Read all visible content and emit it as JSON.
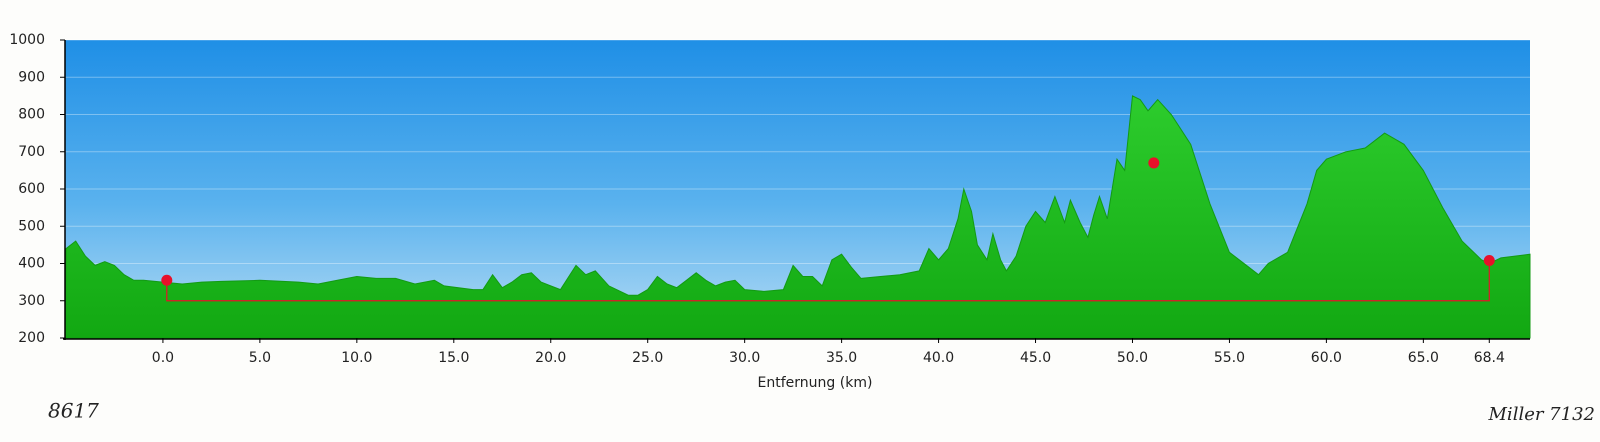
{
  "chart_data": {
    "type": "area",
    "x_label": "Entfernung  (km)",
    "xlim": [
      -5.05,
      70.5
    ],
    "ylim": [
      200,
      1000
    ],
    "xticks": [
      {
        "value": 0,
        "label": "0.0"
      },
      {
        "value": 5,
        "label": "5.0"
      },
      {
        "value": 10,
        "label": "10.0"
      },
      {
        "value": 15,
        "label": "15.0"
      },
      {
        "value": 20,
        "label": "20.0"
      },
      {
        "value": 25,
        "label": "25.0"
      },
      {
        "value": 30,
        "label": "30.0"
      },
      {
        "value": 35,
        "label": "35.0"
      },
      {
        "value": 40,
        "label": "40.0"
      },
      {
        "value": 45,
        "label": "45.0"
      },
      {
        "value": 50,
        "label": "50.0"
      },
      {
        "value": 55,
        "label": "55.0"
      },
      {
        "value": 60,
        "label": "60.0"
      },
      {
        "value": 65,
        "label": "65.0"
      },
      68.4
    ],
    "yticks": [
      200,
      300,
      400,
      500,
      600,
      700,
      800,
      900,
      1000
    ],
    "grid": true,
    "series": [
      {
        "color": "#1fbf1f",
        "x": [
          -5,
          -4.5,
          -4,
          -3.5,
          -3,
          -2.5,
          -2,
          -1.5,
          -1,
          0,
          1,
          2,
          3,
          5,
          7,
          8,
          9,
          10,
          11,
          12,
          13,
          14,
          14.5,
          16,
          16.5,
          17,
          17.5,
          18,
          18.5,
          19,
          19.5,
          20,
          20.5,
          21.3,
          21.8,
          22.3,
          23,
          24,
          24.5,
          25,
          25.5,
          26,
          26.5,
          27,
          27.5,
          28,
          28.5,
          29,
          29.5,
          30,
          31,
          32,
          32.5,
          33,
          33.5,
          34,
          34.5,
          35,
          35.5,
          36,
          37,
          38,
          39,
          39.5,
          40,
          40.5,
          41,
          41.3,
          41.7,
          42,
          42.5,
          42.8,
          43.2,
          43.5,
          44,
          44.5,
          45,
          45.5,
          46,
          46.5,
          46.8,
          47.3,
          47.7,
          48,
          48.3,
          48.7,
          49.2,
          49.6,
          50,
          50.4,
          50.8,
          51.3,
          52,
          53,
          54,
          55,
          56,
          56.5,
          57,
          58,
          59,
          59.5,
          60,
          61,
          62,
          63,
          64,
          65,
          66,
          67,
          68,
          68.4,
          69,
          70.5
        ],
        "values": [
          440,
          460,
          420,
          395,
          405,
          395,
          370,
          355,
          355,
          350,
          345,
          350,
          352,
          355,
          350,
          345,
          355,
          365,
          360,
          360,
          345,
          355,
          340,
          330,
          330,
          370,
          335,
          350,
          370,
          375,
          350,
          340,
          330,
          395,
          370,
          380,
          340,
          315,
          315,
          330,
          365,
          345,
          335,
          355,
          375,
          355,
          340,
          350,
          355,
          330,
          325,
          330,
          395,
          365,
          365,
          340,
          410,
          425,
          390,
          360,
          365,
          370,
          380,
          440,
          410,
          440,
          520,
          600,
          540,
          450,
          410,
          480,
          410,
          380,
          420,
          500,
          540,
          510,
          580,
          510,
          570,
          510,
          470,
          530,
          580,
          520,
          680,
          650,
          850,
          840,
          810,
          840,
          800,
          720,
          560,
          430,
          390,
          370,
          400,
          430,
          560,
          650,
          680,
          700,
          710,
          750,
          720,
          650,
          550,
          460,
          410,
          400,
          415,
          425
        ]
      }
    ],
    "markers": {
      "color": "#e8102a",
      "x": [
        0.2,
        51.1,
        68.4
      ],
      "values": [
        355,
        670,
        408
      ]
    },
    "baseline": 300,
    "annotations": [
      "8617",
      "Miller 7132"
    ]
  }
}
